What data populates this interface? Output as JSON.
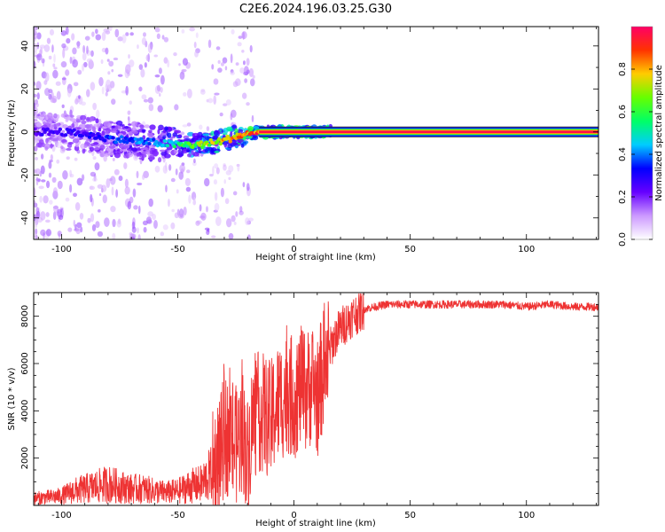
{
  "title": "C2E6.2024.196.03.25.G30",
  "chart_data": [
    {
      "type": "heatmap",
      "xlabel": "Height of straight line (km)",
      "ylabel": "Frequency (Hz)",
      "xlim": [
        -112,
        131
      ],
      "ylim": [
        -50,
        49
      ],
      "xticks": [
        -100,
        -50,
        0,
        50,
        100
      ],
      "yticks": [
        -40,
        -20,
        0,
        20,
        40
      ],
      "colorbar": {
        "label": "Normalized spectral amplitude",
        "range": [
          0.0,
          1.0
        ],
        "ticks": [
          0.0,
          0.2,
          0.4,
          0.6,
          0.8
        ],
        "tick_labels": [
          "0.0",
          "0.2",
          "0.4",
          "0.6",
          "0.8"
        ],
        "colors": [
          "#ffffff",
          "#cc99ff",
          "#6600ff",
          "#0000ff",
          "#00ccff",
          "#00ff66",
          "#66ff00",
          "#ffcc00",
          "#ff3300",
          "#ff0066"
        ]
      },
      "ridge": {
        "x": [
          -112,
          -100,
          -90,
          -80,
          -70,
          -60,
          -50,
          -45,
          -40,
          -35,
          -30,
          -25,
          -20,
          -15,
          -10,
          -5,
          0,
          5,
          10,
          15,
          20,
          40,
          60,
          80,
          100,
          131
        ],
        "y": [
          0,
          0,
          -1,
          -3,
          -4,
          -5,
          -6,
          -6,
          -6,
          -5,
          -4,
          -2,
          -1,
          0,
          0,
          0,
          0,
          0,
          0,
          0,
          0,
          0,
          0,
          0,
          0,
          0
        ],
        "amplitude": [
          0.25,
          0.3,
          0.3,
          0.35,
          0.4,
          0.4,
          0.55,
          0.65,
          0.7,
          0.75,
          0.8,
          0.85,
          0.9,
          0.9,
          0.92,
          0.92,
          0.93,
          0.93,
          0.94,
          0.95,
          0.95,
          0.95,
          0.95,
          0.95,
          0.95,
          0.95
        ]
      }
    },
    {
      "type": "line",
      "xlabel": "Height of straight line (km)",
      "ylabel": "SNR (10 * v/v)",
      "xlim": [
        -112,
        131
      ],
      "ylim": [
        0,
        9000
      ],
      "xticks": [
        -100,
        -50,
        0,
        50,
        100
      ],
      "yticks": [
        2000,
        4000,
        6000,
        8000
      ],
      "color": "#ee3333",
      "series": [
        {
          "x": [
            -112,
            -105,
            -100,
            -95,
            -90,
            -85,
            -80,
            -75,
            -70,
            -65,
            -60,
            -55,
            -50,
            -45,
            -40,
            -35,
            -32,
            -30,
            -27,
            -25,
            -22,
            -20,
            -18,
            -15,
            -12,
            -10,
            -8,
            -5,
            -3,
            0,
            3,
            5,
            8,
            10,
            12,
            15,
            18,
            20,
            25,
            30,
            35,
            40,
            45,
            50,
            60,
            70,
            80,
            90,
            100,
            110,
            120,
            131
          ],
          "y": [
            300,
            350,
            400,
            600,
            700,
            800,
            900,
            800,
            700,
            700,
            600,
            550,
            600,
            800,
            900,
            1400,
            2000,
            3000,
            2800,
            2500,
            3200,
            2000,
            3500,
            4000,
            3800,
            3500,
            4200,
            4500,
            4800,
            4500,
            5000,
            4800,
            5200,
            4500,
            5500,
            6500,
            7200,
            7500,
            8000,
            8300,
            8400,
            8500,
            8500,
            8500,
            8500,
            8500,
            8500,
            8500,
            8400,
            8500,
            8400,
            8400
          ]
        }
      ]
    }
  ]
}
